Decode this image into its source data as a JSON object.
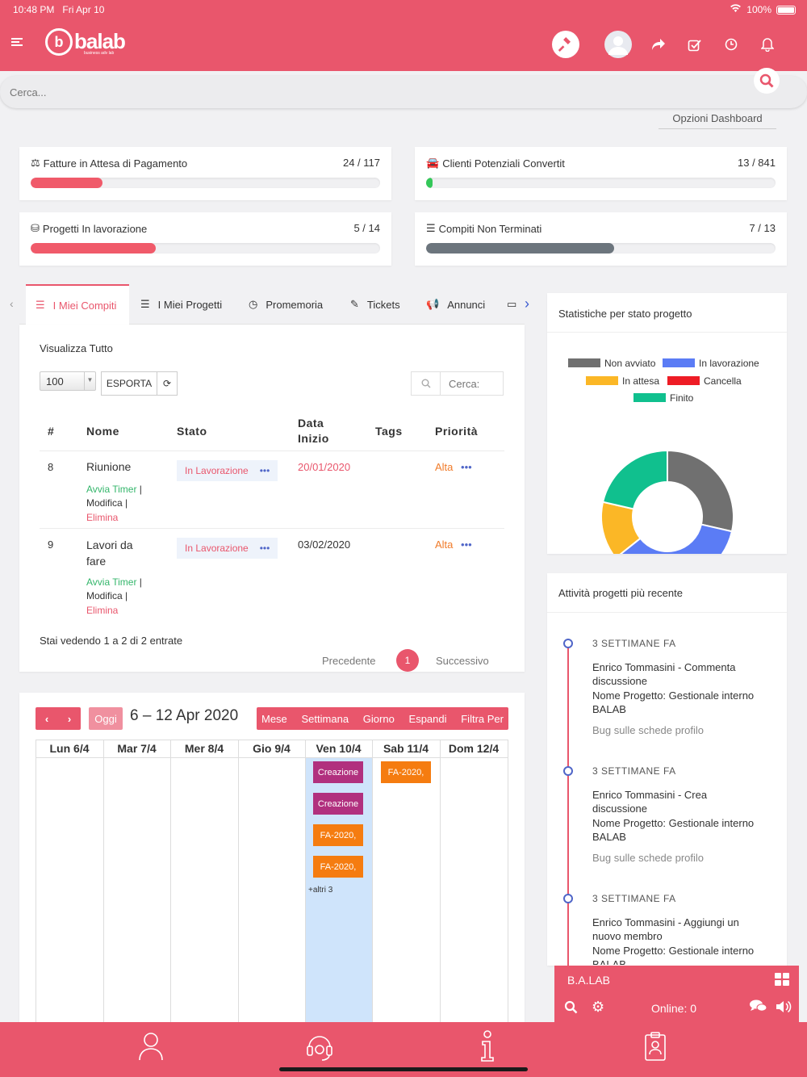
{
  "status_bar": {
    "time": "10:48 PM",
    "date": "Fri Apr 10",
    "battery": "100%"
  },
  "header": {
    "logo_text": "balab",
    "logo_sub": "business adv lab"
  },
  "search": {
    "placeholder": "Cerca..."
  },
  "dashboard_options_label": "Opzioni Dashboard",
  "stats": [
    {
      "label": "Fatture in Attesa di Pagamento",
      "value": "24 / 117",
      "progress": 0.205,
      "color": "#f05a6a",
      "icon": "balance-scale-icon"
    },
    {
      "label": "Clienti Potenziali Convertit",
      "value": "13 / 841",
      "progress": 0.016,
      "color": "#34c759",
      "icon": "car-icon"
    },
    {
      "label": "Progetti In lavorazione",
      "value": "5 / 14",
      "progress": 0.357,
      "color": "#f05a6a",
      "icon": "cubes-icon"
    },
    {
      "label": "Compiti Non Terminati",
      "value": "7 / 13",
      "progress": 0.538,
      "color": "#6c757d",
      "icon": "list-icon"
    }
  ],
  "tabs": [
    "I Miei Compiti",
    "I Miei Progetti",
    "Promemoria",
    "Tickets",
    "Annunci"
  ],
  "tasks": {
    "view_all": "Visualizza Tutto",
    "page_size": "100",
    "export_label": "ESPORTA",
    "search_placeholder": "Cerca:",
    "columns": [
      "#",
      "Nome",
      "Stato",
      "Data Inizio",
      "Tags",
      "Priorità"
    ],
    "rows": [
      {
        "num": "8",
        "name": "Riunione",
        "status": "In Lavorazione",
        "date": "20/01/2020",
        "priority": "Alta",
        "action_start": "Avvia Timer",
        "action_edit": "Modifica",
        "action_delete": "Elimina"
      },
      {
        "num": "9",
        "name": "Lavori da fare",
        "status": "In Lavorazione",
        "date": "03/02/2020",
        "priority": "Alta",
        "action_start": "Avvia Timer",
        "action_edit": "Modifica",
        "action_delete": "Elimina"
      }
    ],
    "info": "Stai vedendo 1 a 2 di 2 entrate",
    "prev": "Precedente",
    "page": "1",
    "next": "Successivo"
  },
  "calendar": {
    "today": "Oggi",
    "title": "6 – 12 Apr 2020",
    "views": [
      "Mese",
      "Settimana",
      "Giorno",
      "Espandi",
      "Filtra Per"
    ],
    "days": [
      "Lun 6/4",
      "Mar 7/4",
      "Mer 8/4",
      "Gio 9/4",
      "Ven 10/4",
      "Sab 11/4",
      "Dom 12/4"
    ],
    "events_fri": [
      "Creazione",
      "Creazione",
      "FA-2020,",
      "FA-2020,"
    ],
    "events_sat": [
      "FA-2020,"
    ],
    "more": "+altri 3"
  },
  "chart_title": "Statistiche per stato progetto",
  "chart_data": {
    "type": "pie",
    "donut": true,
    "legend_position": "top",
    "series": [
      {
        "name": "Non avviato",
        "value": 4,
        "color": "#707070"
      },
      {
        "name": "In lavorazione",
        "value": 5,
        "color": "#5b7cf5"
      },
      {
        "name": "In attesa",
        "value": 2,
        "color": "#fbb726"
      },
      {
        "name": "Cancella",
        "value": 0,
        "color": "#ee1c25"
      },
      {
        "name": "Finito",
        "value": 3,
        "color": "#10c08e"
      }
    ]
  },
  "activity": {
    "title": "Attività progetti più recente",
    "items": [
      {
        "when": "3 SETTIMANE FA",
        "text1": "Enrico Tommasini - Commenta",
        "text2": "discussione",
        "text3": "Nome Progetto: Gestionale interno",
        "text4": "BALAB",
        "sub": "Bug sulle schede profilo"
      },
      {
        "when": "3 SETTIMANE FA",
        "text1": "Enrico Tommasini - Crea",
        "text2": "discussione",
        "text3": "Nome Progetto: Gestionale interno",
        "text4": "BALAB",
        "sub": "Bug sulle schede profilo"
      },
      {
        "when": "3 SETTIMANE FA",
        "text1": "Enrico Tommasini - Aggiungi un",
        "text2": "nuovo membro",
        "text3": "Nome Progetto: Gestionale interno",
        "text4": "BALAB",
        "sub": ""
      }
    ]
  },
  "chat": {
    "title": "B.A.LAB",
    "online": "Online: 0"
  }
}
